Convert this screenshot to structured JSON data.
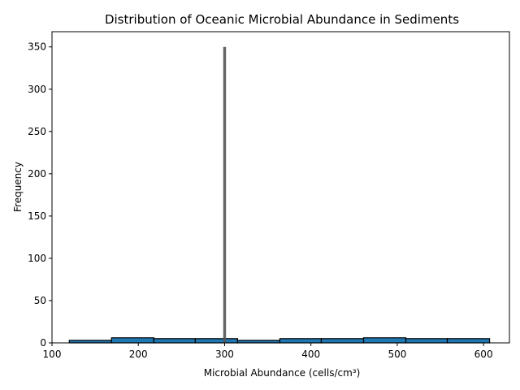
{
  "chart_data": {
    "type": "bar",
    "title": "Distribution of Oceanic Microbial Abundance in Sediments",
    "xlabel": "Microbial Abundance (cells/cm³)",
    "ylabel": "Frequency",
    "xlim": [
      100,
      630
    ],
    "ylim": [
      0,
      368
    ],
    "xticks": [
      100,
      200,
      300,
      400,
      500,
      600
    ],
    "yticks": [
      0,
      50,
      100,
      150,
      200,
      250,
      300,
      350
    ],
    "grid": false,
    "legend": "none",
    "bins": [
      {
        "start": 120,
        "end": 169,
        "count": 3
      },
      {
        "start": 169,
        "end": 218,
        "count": 6
      },
      {
        "start": 218,
        "end": 266,
        "count": 5
      },
      {
        "start": 266,
        "end": 315,
        "count": 5
      },
      {
        "start": 315,
        "end": 364,
        "count": 3
      },
      {
        "start": 364,
        "end": 412,
        "count": 5
      },
      {
        "start": 412,
        "end": 461,
        "count": 5
      },
      {
        "start": 461,
        "end": 510,
        "count": 6
      },
      {
        "start": 510,
        "end": 558,
        "count": 5
      },
      {
        "start": 558,
        "end": 607,
        "count": 5
      }
    ],
    "vertical_line": {
      "x": 300,
      "y_top": 350
    },
    "colors": {
      "bar": "#1f77b4",
      "bar_edge": "#000000",
      "vertical_line": "#555555"
    }
  }
}
